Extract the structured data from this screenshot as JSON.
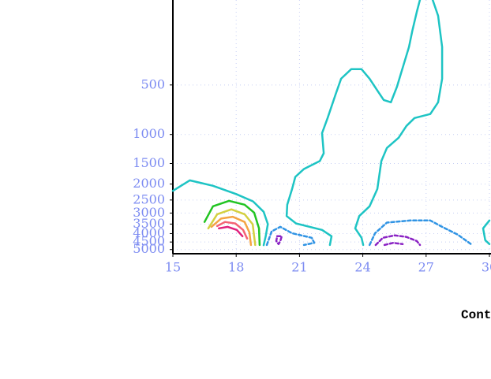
{
  "chart_data": {
    "type": "contour",
    "annotation": "Cont",
    "xlim": [
      15,
      30
    ],
    "xticks": [
      15,
      18,
      21,
      24,
      27,
      30
    ],
    "ylim": [
      5300,
      150
    ],
    "yticks": [
      500,
      1000,
      1500,
      2000,
      2500,
      3000,
      3500,
      4000,
      4500,
      5000
    ],
    "log_y": true,
    "grid": true,
    "contours": [
      {
        "color": "#1ec4c4",
        "dashed": false,
        "x": [
          15,
          15.8,
          16.9,
          18,
          18.8,
          19.3,
          19.5,
          19.4,
          19.3
        ],
        "y": [
          2200,
          1900,
          2050,
          2300,
          2550,
          2950,
          3500,
          4150,
          4700
        ]
      },
      {
        "color": "#1ec4c4",
        "dashed": false,
        "x": [
          22.44,
          22.52,
          22.07,
          20.84,
          20.39,
          20.42,
          20.65,
          20.8,
          21.21,
          21.96,
          22.15,
          22.07,
          22.33,
          22.71,
          22.97,
          23.45,
          23.94,
          24.32,
          24.69,
          24.99,
          25.33,
          25.62,
          25.96,
          26.19,
          26.34,
          26.56,
          26.71
        ],
        "y": [
          4690,
          4150,
          3800,
          3470,
          3130,
          2670,
          2143,
          1810,
          1620,
          1450,
          1300,
          980,
          794,
          571,
          458,
          401,
          401,
          458,
          540,
          617,
          637,
          512,
          367,
          294,
          236,
          180,
          152
        ]
      },
      {
        "color": "#1ec4c4",
        "dashed": false,
        "x": [
          27.31,
          27.57,
          27.76,
          27.76,
          27.57,
          27.2,
          26.45,
          26.07,
          25.7,
          25.14,
          24.88,
          24.69,
          24.32,
          23.83,
          23.64,
          23.94,
          24.02
        ],
        "y": [
          152,
          190,
          294,
          458,
          637,
          751,
          794,
          887,
          1046,
          1208,
          1450,
          2143,
          2730,
          3130,
          3715,
          4240,
          4690
        ]
      },
      {
        "color": "#1ec4c4",
        "dashed": false,
        "x": [
          30,
          29.7,
          29.8,
          30
        ],
        "y": [
          3330,
          3715,
          4385,
          4635
        ]
      },
      {
        "color": "#22c422",
        "dashed": false,
        "x": [
          16.5,
          16.9,
          17.66,
          18.4,
          18.85,
          19.08,
          19.11
        ],
        "y": [
          3400,
          2730,
          2530,
          2670,
          2980,
          3715,
          4690
        ]
      },
      {
        "color": "#d4d040",
        "dashed": false,
        "x": [
          16.68,
          17.1,
          17.77,
          18.4,
          18.78,
          18.9
        ],
        "y": [
          3715,
          3050,
          2850,
          3050,
          3510,
          4690
        ]
      },
      {
        "color": "#f4a444",
        "dashed": false,
        "x": [
          16.83,
          17.28,
          17.84,
          18.4,
          18.63,
          18.7
        ],
        "y": [
          3640,
          3240,
          3160,
          3400,
          3940,
          4690
        ]
      },
      {
        "color": "#f46274",
        "dashed": false,
        "x": [
          17.1,
          17.47,
          17.96,
          18.33,
          18.52
        ],
        "y": [
          3600,
          3400,
          3470,
          3800,
          4290
        ]
      },
      {
        "color": "#e0207c",
        "dashed": false,
        "x": [
          17.18,
          17.6,
          18.03,
          18.3
        ],
        "y": [
          3715,
          3640,
          3800,
          4150
        ]
      },
      {
        "color": "#3094e4",
        "dashed": true,
        "x": [
          19.45,
          19.68,
          20.09,
          20.65,
          21.58,
          21.7,
          21.21
        ],
        "y": [
          4690,
          3880,
          3640,
          3980,
          4240,
          4550,
          4690
        ]
      },
      {
        "color": "#8a22c4",
        "dashed": true,
        "x": [
          19.94,
          20.16,
          20.09,
          20.01,
          19.9,
          19.94
        ],
        "y": [
          4150,
          4150,
          4440,
          4635,
          4440,
          4150
        ]
      },
      {
        "color": "#3094e4",
        "dashed": true,
        "x": [
          24.32,
          24.58,
          25.14,
          26.26,
          27.2,
          27.76,
          28.5,
          29.18
        ],
        "y": [
          4690,
          3980,
          3430,
          3330,
          3330,
          3640,
          4060,
          4690
        ]
      },
      {
        "color": "#8a22c4",
        "dashed": true,
        "x": [
          24.61,
          24.95,
          25.52,
          26.07,
          26.56,
          26.71
        ],
        "y": [
          4690,
          4240,
          4100,
          4190,
          4440,
          4690
        ]
      },
      {
        "color": "#8a22c4",
        "dashed": true,
        "x": [
          25.03,
          25.44,
          25.89
        ],
        "y": [
          4690,
          4550,
          4635
        ]
      }
    ]
  }
}
